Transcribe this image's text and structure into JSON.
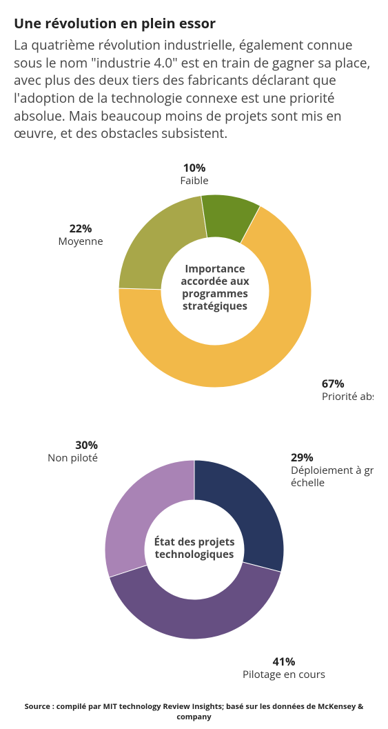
{
  "title": "Une révolution en plein essor",
  "subtitle": "La quatrième révolution industrielle, également connue sous le nom \"industrie 4.0\" est en train de gagner sa place, avec plus des deux tiers des fabricants déclarant que l'adoption de la technologie connexe est une priorité absolue. Mais beaucoup moins de projets sont mis en œuvre, et des obstacles subsistent.",
  "source": "Source : compilé par MIT technology Review Insights; basé sur les données de McKensey & company",
  "chart1": {
    "type": "donut",
    "center_title_l1": "Importance",
    "center_title_l2": "accordée aux",
    "center_title_l3": "programmes",
    "center_title_l4": "stratégiques",
    "slices": [
      {
        "value": 67,
        "pct_label": "67%",
        "name": "Priorité absolue",
        "color": "#f2b949"
      },
      {
        "value": 22,
        "pct_label": "22%",
        "name": "Moyenne",
        "color": "#a8a749"
      },
      {
        "value": 10,
        "pct_label": "10%",
        "name": "Faible",
        "color": "#6b8e23"
      }
    ],
    "labels": {
      "s0_pct": "67%",
      "s0_name": "Priorité absolue",
      "s1_pct": "22%",
      "s1_name": "Moyenne",
      "s2_pct": "10%",
      "s2_name": "Faible"
    },
    "outer_radius": 140,
    "inner_radius": 78,
    "background": "#ffffff",
    "center_fontsize": 15,
    "label_pct_fontsize": 16,
    "label_name_fontsize": 15
  },
  "chart2": {
    "type": "donut",
    "center_title_l1": "État des projets",
    "center_title_l2": "technologiques",
    "slices": [
      {
        "value": 29,
        "pct_label": "29%",
        "name": "Déploiement à grand échelle",
        "color": "#28375f"
      },
      {
        "value": 41,
        "pct_label": "41%",
        "name": "Pilotage en cours",
        "color": "#664f82"
      },
      {
        "value": 30,
        "pct_label": "30%",
        "name": "Non piloté",
        "color": "#a983b5"
      }
    ],
    "labels": {
      "s0_pct": "29%",
      "s0_name_l1": "Déploiement à grand",
      "s0_name_l2": "échelle",
      "s1_pct": "41%",
      "s1_name": "Pilotage en cours",
      "s2_pct": "30%",
      "s2_name": "Non piloté"
    },
    "outer_radius": 130,
    "inner_radius": 72,
    "background": "#ffffff",
    "center_fontsize": 15,
    "label_pct_fontsize": 16,
    "label_name_fontsize": 15
  }
}
